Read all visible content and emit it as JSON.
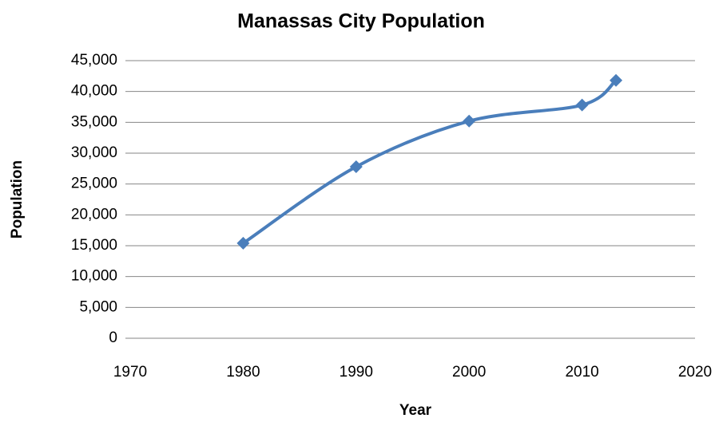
{
  "chart_data": {
    "type": "line",
    "title": "Manassas City Population",
    "x_label": "Year",
    "y_label": "Population",
    "x": [
      1980,
      1990,
      2000,
      2010,
      2013
    ],
    "series": [
      {
        "name": "Population",
        "color": "#4a7ebb",
        "values": [
          15400,
          27800,
          35200,
          37800,
          41800
        ]
      }
    ],
    "xlim": [
      1970,
      2020
    ],
    "xticks": [
      1970,
      1980,
      1990,
      2000,
      2010,
      2020
    ],
    "ylim": [
      0,
      45000
    ],
    "yticks": [
      0,
      {
        "value": 5000,
        "label": "5,000"
      },
      {
        "value": 10000,
        "label": "10,000"
      },
      {
        "value": 15000,
        "label": "15,000"
      },
      {
        "value": 20000,
        "label": "20,000"
      },
      {
        "value": 25000,
        "label": "25,000"
      },
      {
        "value": 30000,
        "label": "30,000"
      },
      {
        "value": 35000,
        "label": "35,000"
      },
      {
        "value": 40000,
        "label": "40,000"
      },
      {
        "value": 45000,
        "label": "45,000"
      }
    ],
    "grid": true,
    "smooth": true,
    "marker": "diamond"
  }
}
